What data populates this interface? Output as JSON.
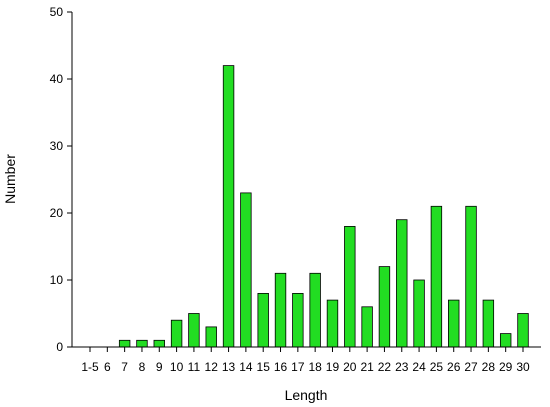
{
  "chart_data": {
    "type": "bar",
    "xlabel": "Length",
    "ylabel": "Number",
    "categories": [
      "1-5",
      "6",
      "7",
      "8",
      "9",
      "10",
      "11",
      "12",
      "13",
      "14",
      "15",
      "16",
      "17",
      "18",
      "19",
      "20",
      "21",
      "22",
      "23",
      "24",
      "25",
      "26",
      "27",
      "28",
      "29",
      "30"
    ],
    "values": [
      0,
      0,
      1,
      1,
      1,
      4,
      5,
      3,
      42,
      23,
      8,
      11,
      8,
      11,
      7,
      18,
      6,
      12,
      19,
      10,
      21,
      7,
      21,
      7,
      2,
      5
    ],
    "ylim": [
      0,
      50
    ],
    "yticks": [
      0,
      10,
      20,
      30,
      40,
      50
    ],
    "bar_color": "#22dd22",
    "grid": false,
    "legend": "none"
  }
}
